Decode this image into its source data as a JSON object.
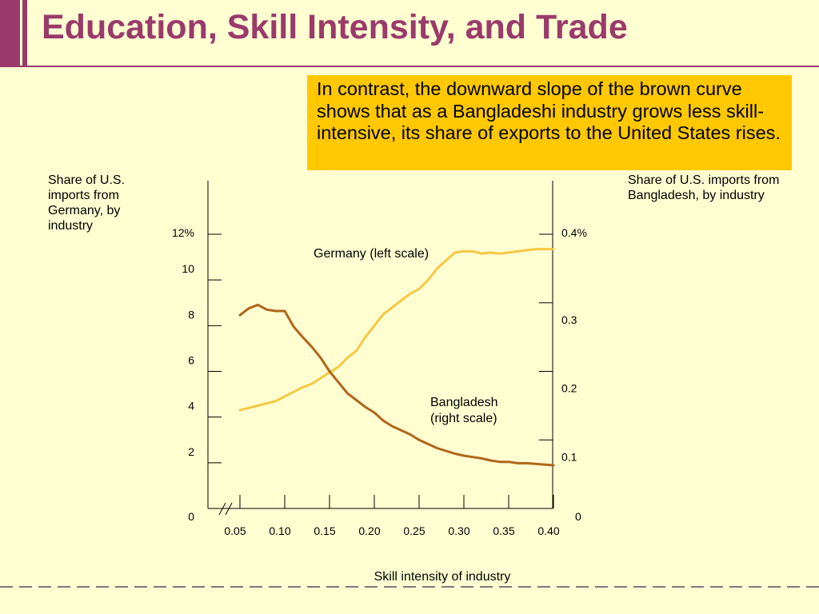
{
  "slide": {
    "title": "Education, Skill Intensity, and Trade",
    "callout": "In contrast, the downward slope of the brown curve shows that as a Bangladeshi industry grows less skill-intensive, its share of exports to the United States rises.",
    "left_axis_title": "Share of U.S. imports from Germany, by industry",
    "right_axis_title": "Share of U.S. imports from Bangladesh, by industry"
  },
  "colors": {
    "title": "#9a3a6b",
    "callout_bg": "#ffc800",
    "background": "#ffffd2",
    "germany": "#f5c842",
    "bangladesh": "#b0661a"
  },
  "chart_data": {
    "type": "line",
    "xlabel": "Skill intensity of industry",
    "x_ticks": [
      "0.05",
      "0.10",
      "0.15",
      "0.20",
      "0.25",
      "0.30",
      "0.35",
      "0.40"
    ],
    "x_tick_values": [
      0.05,
      0.1,
      0.15,
      0.2,
      0.25,
      0.3,
      0.35,
      0.4
    ],
    "xlim": [
      0.03,
      0.4
    ],
    "y_left": {
      "ylim": [
        0,
        12
      ],
      "ticks": [
        "0",
        "2",
        "4",
        "6",
        "8",
        "10",
        "12%"
      ],
      "tick_values": [
        0,
        2,
        4,
        6,
        8,
        10,
        12
      ]
    },
    "y_right": {
      "ylim": [
        0,
        0.4
      ],
      "ticks": [
        "0",
        "0.1",
        "0.2",
        "0.3",
        "0.4%"
      ],
      "tick_values": [
        0,
        0.1,
        0.2,
        0.3,
        0.4
      ]
    },
    "series": [
      {
        "name": "Germany (left scale)",
        "axis": "left",
        "x": [
          0.05,
          0.06,
          0.07,
          0.08,
          0.09,
          0.1,
          0.11,
          0.12,
          0.13,
          0.14,
          0.15,
          0.16,
          0.17,
          0.18,
          0.19,
          0.2,
          0.21,
          0.22,
          0.23,
          0.24,
          0.25,
          0.26,
          0.27,
          0.28,
          0.29,
          0.3,
          0.31,
          0.32,
          0.33,
          0.34,
          0.35,
          0.36,
          0.37,
          0.38,
          0.39,
          0.4
        ],
        "values": [
          4.3,
          4.4,
          4.5,
          4.6,
          4.7,
          4.9,
          5.1,
          5.3,
          5.45,
          5.7,
          5.95,
          6.2,
          6.6,
          6.9,
          7.5,
          8.0,
          8.5,
          8.8,
          9.1,
          9.4,
          9.6,
          10.0,
          10.5,
          10.85,
          11.2,
          11.25,
          11.25,
          11.15,
          11.2,
          11.15,
          11.2,
          11.25,
          11.3,
          11.35,
          11.35,
          11.35
        ]
      },
      {
        "name": "Bangladesh (right scale)",
        "axis": "right",
        "x": [
          0.05,
          0.06,
          0.07,
          0.08,
          0.09,
          0.1,
          0.11,
          0.12,
          0.13,
          0.14,
          0.15,
          0.16,
          0.17,
          0.18,
          0.19,
          0.2,
          0.21,
          0.22,
          0.23,
          0.24,
          0.25,
          0.26,
          0.27,
          0.28,
          0.29,
          0.3,
          0.31,
          0.32,
          0.33,
          0.34,
          0.35,
          0.36,
          0.37,
          0.38,
          0.39,
          0.4
        ],
        "values": [
          0.282,
          0.292,
          0.297,
          0.29,
          0.288,
          0.288,
          0.265,
          0.25,
          0.236,
          0.22,
          0.2,
          0.184,
          0.168,
          0.158,
          0.148,
          0.14,
          0.128,
          0.12,
          0.114,
          0.108,
          0.1,
          0.094,
          0.088,
          0.084,
          0.08,
          0.077,
          0.075,
          0.073,
          0.07,
          0.068,
          0.068,
          0.066,
          0.066,
          0.065,
          0.064,
          0.063
        ]
      }
    ]
  }
}
